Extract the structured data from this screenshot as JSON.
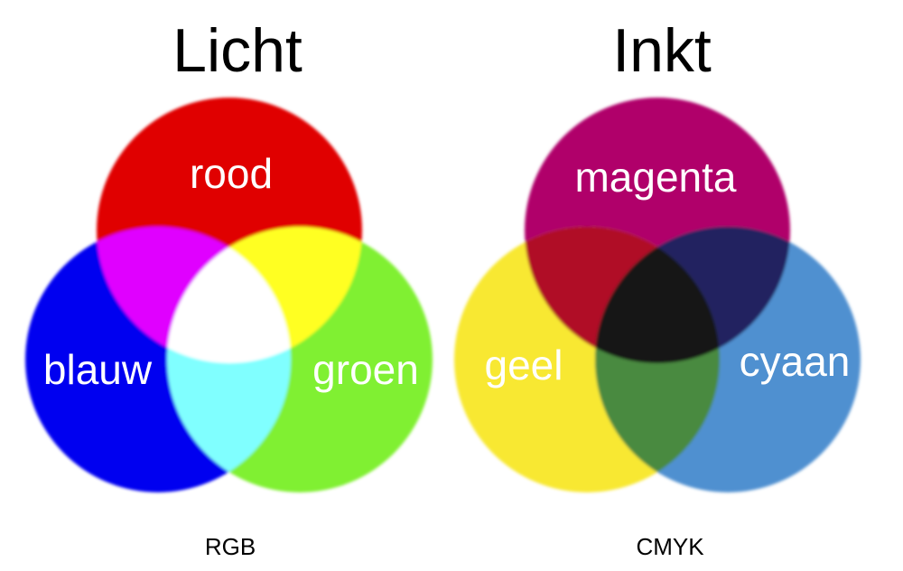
{
  "light": {
    "title": "Licht",
    "caption": "RGB",
    "circles": [
      {
        "label": "rood",
        "color": "#e00000"
      },
      {
        "label": "blauw",
        "color": "#0000f0"
      },
      {
        "label": "groen",
        "color": "#80f030"
      }
    ],
    "overlap_colors": {
      "rood_blauw": "#e000ff",
      "rood_groen": "#ffff20",
      "blauw_groen": "#80ffff",
      "center": "#ffffff"
    }
  },
  "ink": {
    "title": "Inkt",
    "caption": "CMYK",
    "circles": [
      {
        "label": "magenta",
        "color": "#b0006a"
      },
      {
        "label": "geel",
        "color": "#f8e830"
      },
      {
        "label": "cyaan",
        "color": "#5090d0"
      }
    ],
    "overlap_colors": {
      "magenta_geel": "#b01028",
      "magenta_cyaan": "#202060",
      "geel_cyaan": "#4a8a40",
      "center": "#151515"
    }
  }
}
